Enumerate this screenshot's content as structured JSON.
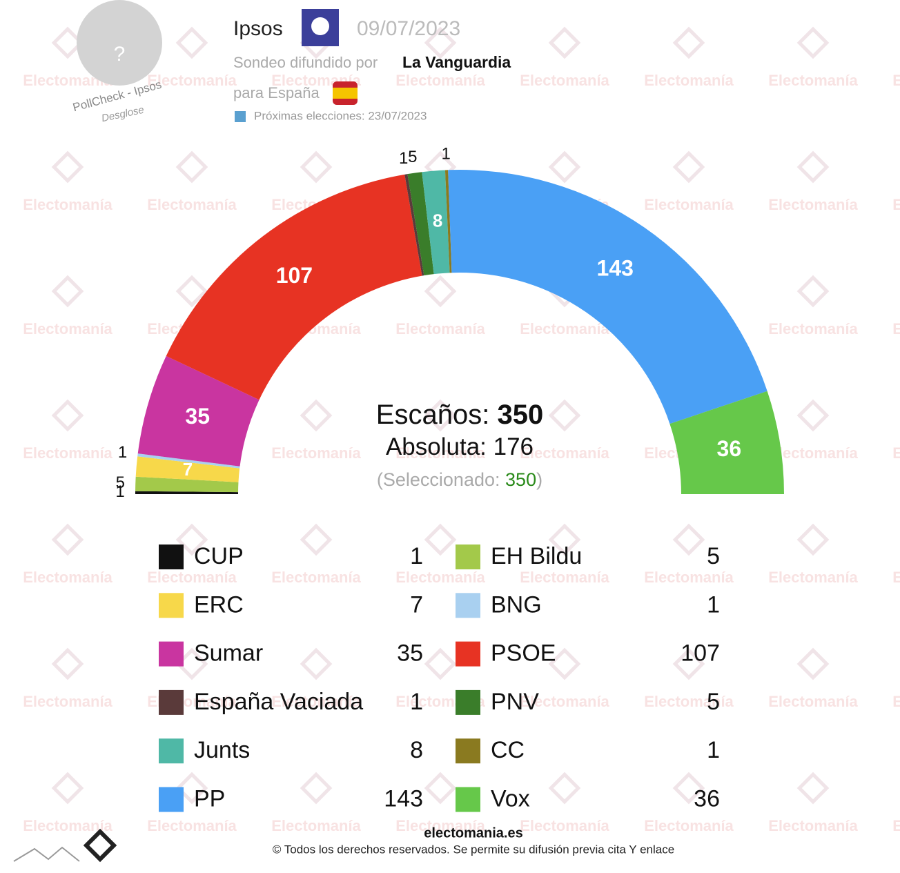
{
  "header": {
    "pollster": "Ipsos",
    "date": "09/07/2023",
    "spread_by_label": "Sondeo difundido por",
    "media": "La Vanguardia",
    "for_label": "para España",
    "next_elections": "Próximas elecciones: 23/07/2023",
    "pollcheck": "PollCheck - Ipsos",
    "breakdown": "Desglose",
    "avatar": "?"
  },
  "watermark": "Electomanía",
  "chart_data": {
    "type": "hemicycle",
    "parties": [
      {
        "name": "CUP",
        "color": "#111111",
        "value": 1
      },
      {
        "name": "EH Bildu",
        "color": "#a3c94a",
        "value": 5
      },
      {
        "name": "ERC",
        "color": "#f7d84a",
        "value": 7
      },
      {
        "name": "BNG",
        "color": "#a9d0f0",
        "value": 1
      },
      {
        "name": "Sumar",
        "color": "#c935a0",
        "value": 35
      },
      {
        "name": "PSOE",
        "color": "#e73323",
        "value": 107
      },
      {
        "name": "España Vaciada",
        "color": "#5a3a3a",
        "value": 1
      },
      {
        "name": "PNV",
        "color": "#3a7d2a",
        "value": 5
      },
      {
        "name": "Junts",
        "color": "#4fb8a6",
        "value": 8
      },
      {
        "name": "CC",
        "color": "#8a7a20",
        "value": 1
      },
      {
        "name": "PP",
        "color": "#4aa0f5",
        "value": 143
      },
      {
        "name": "Vox",
        "color": "#66c84a",
        "value": 36
      }
    ],
    "seats_label": "Escaños:",
    "seats": 350,
    "majority_label": "Absoluta:",
    "majority": 176,
    "selected_label": "(Seleccionado:",
    "selected": 350,
    "selected_close": ")"
  },
  "footer": {
    "site": "electomania.es",
    "rights": "© Todos los derechos reservados. Se permite su difusión previa cita Y enlace"
  }
}
